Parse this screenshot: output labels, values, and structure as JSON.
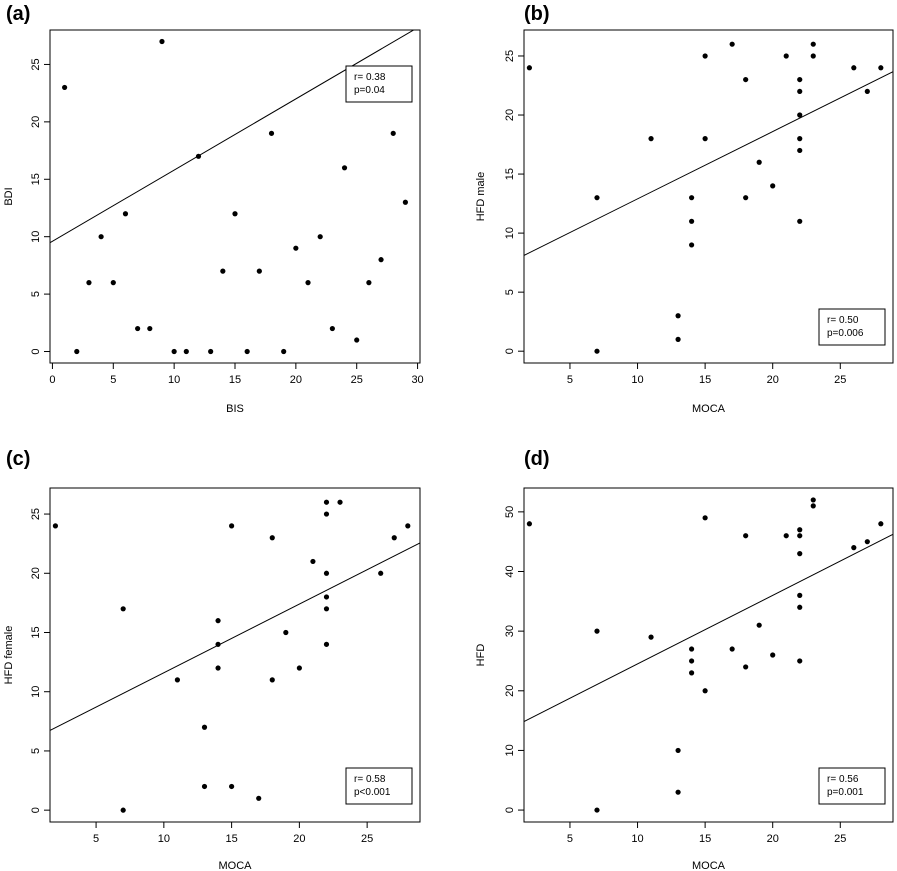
{
  "chart_data": [
    {
      "type": "scatter",
      "panel_label": "(a)",
      "xlabel": "BIS",
      "ylabel": "BDI",
      "xlim": [
        -0.2,
        30.2
      ],
      "ylim": [
        -1,
        28
      ],
      "xticks": [
        0,
        5,
        10,
        15,
        20,
        25,
        30
      ],
      "yticks": [
        0,
        5,
        10,
        15,
        20,
        25
      ],
      "grid": false,
      "regression_line": {
        "intercept": 9.6,
        "slope": 0.62
      },
      "annotation": [
        "r= 0.38",
        "p=0.04"
      ],
      "annotation_position": "top-right",
      "points": [
        [
          1,
          23
        ],
        [
          2,
          0
        ],
        [
          3,
          6
        ],
        [
          4,
          10
        ],
        [
          5,
          6
        ],
        [
          6,
          12
        ],
        [
          7,
          2
        ],
        [
          8,
          2
        ],
        [
          9,
          27
        ],
        [
          10,
          0
        ],
        [
          11,
          0
        ],
        [
          12,
          17
        ],
        [
          13,
          0
        ],
        [
          14,
          7
        ],
        [
          15,
          12
        ],
        [
          16,
          0
        ],
        [
          17,
          7
        ],
        [
          18,
          19
        ],
        [
          19,
          0
        ],
        [
          20,
          9
        ],
        [
          21,
          6
        ],
        [
          22,
          10
        ],
        [
          23,
          2
        ],
        [
          24,
          16
        ],
        [
          25,
          1
        ],
        [
          26,
          6
        ],
        [
          27,
          8
        ],
        [
          28,
          19
        ],
        [
          29,
          13
        ]
      ]
    },
    {
      "type": "scatter",
      "panel_label": "(b)",
      "xlabel": "MOCA",
      "ylabel": "HFD male",
      "xlim": [
        1.6,
        28.9
      ],
      "ylim": [
        -1,
        27.2
      ],
      "xticks": [
        5,
        10,
        15,
        20,
        25
      ],
      "yticks": [
        0,
        5,
        10,
        15,
        20,
        25
      ],
      "grid": false,
      "regression_line": {
        "intercept": 7.2,
        "slope": 0.57
      },
      "annotation": [
        "r= 0.50",
        "p=0.006"
      ],
      "annotation_position": "bottom-right",
      "points": [
        [
          2,
          24
        ],
        [
          7,
          13
        ],
        [
          7,
          0
        ],
        [
          11,
          18
        ],
        [
          13,
          3
        ],
        [
          13,
          1
        ],
        [
          14,
          13
        ],
        [
          14,
          11
        ],
        [
          14,
          9
        ],
        [
          15,
          25
        ],
        [
          15,
          18
        ],
        [
          17,
          26
        ],
        [
          18,
          23
        ],
        [
          18,
          13
        ],
        [
          19,
          16
        ],
        [
          20,
          14
        ],
        [
          21,
          25
        ],
        [
          22,
          23
        ],
        [
          22,
          22
        ],
        [
          22,
          20
        ],
        [
          22,
          18
        ],
        [
          22,
          17
        ],
        [
          22,
          11
        ],
        [
          23,
          26
        ],
        [
          23,
          25
        ],
        [
          26,
          24
        ],
        [
          27,
          22
        ],
        [
          28,
          24
        ]
      ]
    },
    {
      "type": "scatter",
      "panel_label": "(c)",
      "xlabel": "MOCA",
      "ylabel": "HFD female",
      "xlim": [
        1.6,
        28.9
      ],
      "ylim": [
        -1,
        27.2
      ],
      "xticks": [
        5,
        10,
        15,
        20,
        25
      ],
      "yticks": [
        0,
        5,
        10,
        15,
        20,
        25
      ],
      "grid": false,
      "regression_line": {
        "intercept": 5.8,
        "slope": 0.58
      },
      "annotation": [
        "r= 0.58",
        "p<0.001"
      ],
      "annotation_position": "bottom-right",
      "points": [
        [
          2,
          24
        ],
        [
          7,
          17
        ],
        [
          7,
          0
        ],
        [
          11,
          11
        ],
        [
          13,
          7
        ],
        [
          13,
          2
        ],
        [
          14,
          16
        ],
        [
          14,
          14
        ],
        [
          14,
          12
        ],
        [
          15,
          24
        ],
        [
          15,
          2
        ],
        [
          17,
          1
        ],
        [
          18,
          23
        ],
        [
          18,
          11
        ],
        [
          19,
          15
        ],
        [
          20,
          12
        ],
        [
          21,
          21
        ],
        [
          22,
          26
        ],
        [
          22,
          25
        ],
        [
          22,
          20
        ],
        [
          22,
          18
        ],
        [
          22,
          17
        ],
        [
          22,
          14
        ],
        [
          23,
          26
        ],
        [
          26,
          20
        ],
        [
          27,
          23
        ],
        [
          28,
          24
        ]
      ]
    },
    {
      "type": "scatter",
      "panel_label": "(d)",
      "xlabel": "MOCA",
      "ylabel": "HFD",
      "xlim": [
        1.6,
        28.9
      ],
      "ylim": [
        -2,
        54
      ],
      "xticks": [
        5,
        10,
        15,
        20,
        25
      ],
      "yticks": [
        0,
        10,
        20,
        30,
        40,
        50
      ],
      "grid": false,
      "regression_line": {
        "intercept": 13.0,
        "slope": 1.15
      },
      "annotation": [
        "r= 0.56",
        "p=0.001"
      ],
      "annotation_position": "bottom-right",
      "points": [
        [
          2,
          48
        ],
        [
          7,
          30
        ],
        [
          7,
          0
        ],
        [
          11,
          29
        ],
        [
          13,
          10
        ],
        [
          13,
          3
        ],
        [
          14,
          27
        ],
        [
          14,
          25
        ],
        [
          14,
          23
        ],
        [
          15,
          49
        ],
        [
          15,
          20
        ],
        [
          17,
          27
        ],
        [
          18,
          46
        ],
        [
          18,
          24
        ],
        [
          19,
          31
        ],
        [
          20,
          26
        ],
        [
          21,
          46
        ],
        [
          22,
          47
        ],
        [
          22,
          46
        ],
        [
          22,
          43
        ],
        [
          22,
          36
        ],
        [
          22,
          34
        ],
        [
          22,
          25
        ],
        [
          23,
          52
        ],
        [
          23,
          51
        ],
        [
          26,
          44
        ],
        [
          27,
          45
        ],
        [
          28,
          48
        ]
      ]
    }
  ]
}
